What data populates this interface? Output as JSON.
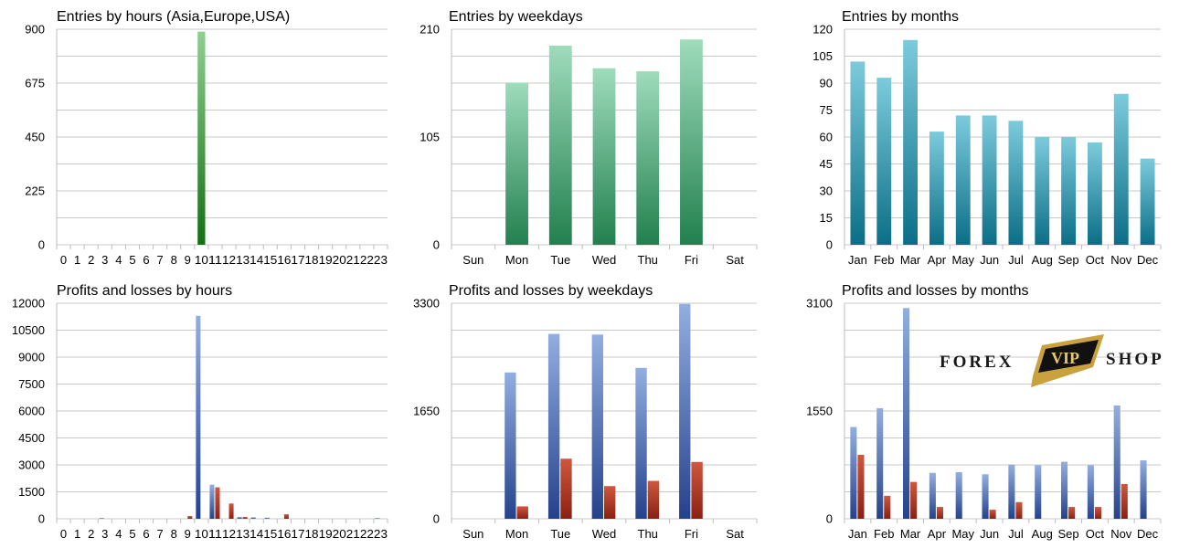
{
  "chart_data": [
    {
      "id": "hours",
      "type": "bar",
      "title": "Entries by hours (Asia,Europe,USA)",
      "categories": [
        "0",
        "1",
        "2",
        "3",
        "4",
        "5",
        "6",
        "7",
        "8",
        "9",
        "10",
        "11",
        "12",
        "13",
        "14",
        "15",
        "16",
        "17",
        "18",
        "19",
        "20",
        "21",
        "22",
        "23"
      ],
      "series": [
        {
          "values": [
            0,
            0,
            0,
            0,
            0,
            0,
            0,
            0,
            0,
            0,
            890,
            0,
            0,
            0,
            0,
            0,
            0,
            0,
            0,
            0,
            0,
            0,
            0,
            0
          ]
        }
      ],
      "yticks": [
        "0",
        "225",
        "450",
        "675",
        "900"
      ],
      "ylim": [
        0,
        900
      ],
      "grid": true,
      "colors": [
        "#1f7a1f"
      ]
    },
    {
      "id": "weekdays",
      "type": "bar",
      "title": "Entries by weekdays",
      "categories": [
        "Sun",
        "Mon",
        "Tue",
        "Wed",
        "Thu",
        "Fri",
        "Sat"
      ],
      "series": [
        {
          "values": [
            0,
            158,
            194,
            172,
            169,
            200,
            0
          ]
        }
      ],
      "yticks": [
        "0",
        "105",
        "210"
      ],
      "ylim": [
        0,
        210
      ],
      "grid": true,
      "colors": [
        "#2e8b57"
      ]
    },
    {
      "id": "months",
      "type": "bar",
      "title": "Entries by months",
      "categories": [
        "Jan",
        "Feb",
        "Mar",
        "Apr",
        "May",
        "Jun",
        "Jul",
        "Aug",
        "Sep",
        "Oct",
        "Nov",
        "Dec"
      ],
      "series": [
        {
          "values": [
            102,
            93,
            114,
            63,
            72,
            72,
            69,
            60,
            60,
            57,
            84,
            48
          ]
        }
      ],
      "yticks": [
        "0",
        "15",
        "30",
        "45",
        "60",
        "75",
        "90",
        "105",
        "120"
      ],
      "ylim": [
        0,
        120
      ],
      "grid": true,
      "colors": [
        "#1a8aa5"
      ]
    },
    {
      "id": "pl-hours",
      "type": "bar",
      "title": "Profits and losses by hours",
      "categories": [
        "0",
        "1",
        "2",
        "3",
        "4",
        "5",
        "6",
        "7",
        "8",
        "9",
        "10",
        "11",
        "12",
        "13",
        "14",
        "15",
        "16",
        "17",
        "18",
        "19",
        "20",
        "21",
        "22",
        "23"
      ],
      "series": [
        {
          "values": [
            0,
            0,
            0,
            40,
            0,
            0,
            0,
            0,
            0,
            0,
            11300,
            1900,
            0,
            100,
            80,
            60,
            0,
            0,
            0,
            0,
            0,
            0,
            0,
            40
          ]
        },
        {
          "values": [
            0,
            0,
            0,
            0,
            0,
            0,
            0,
            0,
            0,
            150,
            0,
            1750,
            850,
            100,
            0,
            0,
            250,
            0,
            0,
            0,
            0,
            0,
            0,
            0
          ]
        }
      ],
      "yticks": [
        "0",
        "1500",
        "3000",
        "4500",
        "6000",
        "7500",
        "9000",
        "10500",
        "12000"
      ],
      "ylim": [
        0,
        12000
      ],
      "grid": true,
      "colors": [
        "#2b4e9e",
        "#b03020"
      ]
    },
    {
      "id": "pl-weekdays",
      "type": "bar",
      "title": "Profits and losses by weekdays",
      "categories": [
        "Sun",
        "Mon",
        "Tue",
        "Wed",
        "Thu",
        "Fri",
        "Sat"
      ],
      "series": [
        {
          "values": [
            0,
            2240,
            2830,
            2820,
            2310,
            3290,
            0
          ]
        },
        {
          "values": [
            0,
            190,
            920,
            500,
            580,
            870,
            0
          ]
        }
      ],
      "yticks": [
        "0",
        "1650",
        "3300"
      ],
      "ylim": [
        0,
        3300
      ],
      "grid": true,
      "colors": [
        "#2b4e9e",
        "#b03020"
      ]
    },
    {
      "id": "pl-months",
      "type": "bar",
      "title": "Profits and losses by months",
      "categories": [
        "Jan",
        "Feb",
        "Mar",
        "Apr",
        "May",
        "Jun",
        "Jul",
        "Aug",
        "Sep",
        "Oct",
        "Nov",
        "Dec"
      ],
      "series": [
        {
          "values": [
            1320,
            1590,
            3030,
            660,
            670,
            640,
            780,
            770,
            820,
            770,
            1630,
            840
          ]
        },
        {
          "values": [
            920,
            330,
            530,
            170,
            0,
            130,
            240,
            0,
            170,
            170,
            500,
            0
          ]
        }
      ],
      "yticks": [
        "0",
        "1550",
        "3100"
      ],
      "ylim": [
        0,
        3100
      ],
      "grid": true,
      "colors": [
        "#2b4e9e",
        "#b03020"
      ]
    }
  ],
  "watermark": {
    "left": "FOREX",
    "center": "VIP",
    "right": "SHOP"
  }
}
